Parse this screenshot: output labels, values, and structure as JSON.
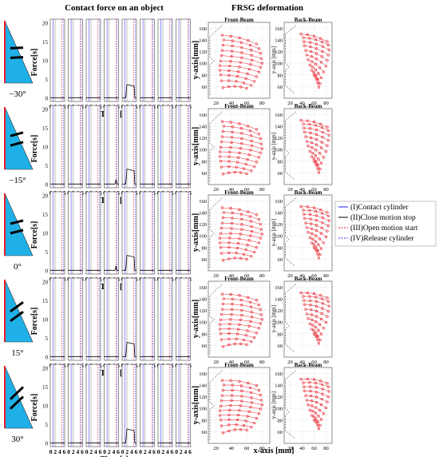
{
  "headers": {
    "force_title": "Contact force on an object",
    "deform_title": "FRSG deformation"
  },
  "force_panel": {
    "ylabel": "Force[s]",
    "xlabel": "Time [s]",
    "yticks": [
      0,
      5,
      10,
      15,
      20
    ],
    "tick_text": "0 2 4 6",
    "subplots": 8
  },
  "deform_panel": {
    "front_title": "Front-Beam",
    "back_title": "Back-Beam",
    "ylabel_front": "y-axis[mm]",
    "ylabel_back": "y-axis [mm]",
    "xlabel": "x-axis [mm]",
    "yticks": [
      60,
      80,
      100,
      120,
      140,
      160
    ],
    "xticks": [
      20,
      40,
      60,
      80
    ]
  },
  "rows": [
    {
      "angle": "−30°"
    },
    {
      "angle": "−15°"
    },
    {
      "angle": "0°"
    },
    {
      "angle": "15°"
    },
    {
      "angle": "30°"
    }
  ],
  "legend": [
    {
      "label": "(I)Contact cylinder",
      "color": "#1a1aff",
      "dash": "solid"
    },
    {
      "label": "(II)Close motion stop",
      "color": "#000000",
      "dash": "solid"
    },
    {
      "label": "(III)Open motion start",
      "color": "#e8202a",
      "dash": "dashed"
    },
    {
      "label": "(IV)Release cylinder",
      "color": "#3a3aff",
      "dash": "dashed"
    }
  ],
  "colors": {
    "sensor_fill": "#1fb0e8",
    "sensor_edge": "#e8202a",
    "beam_red": "#e8202a",
    "grid": "#bbbbbb"
  },
  "chart_data": [
    {
      "type": "line",
      "title": "Contact force on an object",
      "xlabel": "Time [s]",
      "ylabel": "Force[s]",
      "ylim": [
        -1,
        21
      ],
      "xlim": [
        0,
        6
      ],
      "rows": [
        "-30°",
        "-15°",
        "0°",
        "15°",
        "30°"
      ],
      "peak_force_subplot5": [
        3.5,
        4.0,
        4.0,
        3.8,
        3.7
      ],
      "force_profile_subplot5": {
        "x": [
          0,
          1.5,
          2.0,
          5.0,
          5.3,
          6
        ],
        "y": [
          0,
          0,
          3.6,
          3.2,
          0,
          0
        ]
      },
      "event_markers": {
        "contact": 1.2,
        "close_stop": 2.0,
        "open_start": 4.9,
        "release": 5.4
      }
    },
    {
      "type": "scatter",
      "title": "FRSG deformation",
      "panels": [
        "Front-Beam",
        "Back-Beam"
      ],
      "xlabel": "x-axis [mm]",
      "ylabel": "y-axis[mm]",
      "xlim": [
        10,
        90
      ],
      "ylim": [
        40,
        170
      ],
      "front_beam_fan": {
        "points_per_line": 5,
        "lines": 11,
        "base_start": [
          [
            28,
            148
          ],
          [
            30,
            140
          ],
          [
            29,
            131
          ],
          [
            28,
            122
          ],
          [
            27,
            113
          ],
          [
            26,
            104
          ],
          [
            25,
            96
          ],
          [
            25,
            88
          ],
          [
            26,
            80
          ],
          [
            27,
            70
          ],
          [
            29,
            58
          ]
        ],
        "tip_end": [
          [
            73,
            136
          ],
          [
            76,
            128
          ],
          [
            78,
            120
          ],
          [
            79,
            111
          ],
          [
            80,
            103
          ],
          [
            78,
            96
          ],
          [
            76,
            88
          ],
          [
            73,
            80
          ],
          [
            70,
            72
          ],
          [
            66,
            65
          ],
          [
            60,
            60
          ]
        ]
      },
      "back_beam_fan": {
        "points_per_line": 5,
        "lines": 10,
        "base_start": [
          [
            38,
            150
          ],
          [
            42,
            144
          ],
          [
            43,
            137
          ],
          [
            44,
            130
          ],
          [
            46,
            122
          ],
          [
            48,
            114
          ],
          [
            50,
            106
          ],
          [
            53,
            97
          ],
          [
            56,
            88
          ],
          [
            60,
            80
          ]
        ],
        "tip_end": [
          [
            82,
            140
          ],
          [
            84,
            134
          ],
          [
            85,
            126
          ],
          [
            84,
            117
          ],
          [
            82,
            108
          ],
          [
            80,
            98
          ],
          [
            76,
            88
          ],
          [
            72,
            78
          ],
          [
            70,
            68
          ],
          [
            68,
            62
          ]
        ]
      }
    }
  ]
}
